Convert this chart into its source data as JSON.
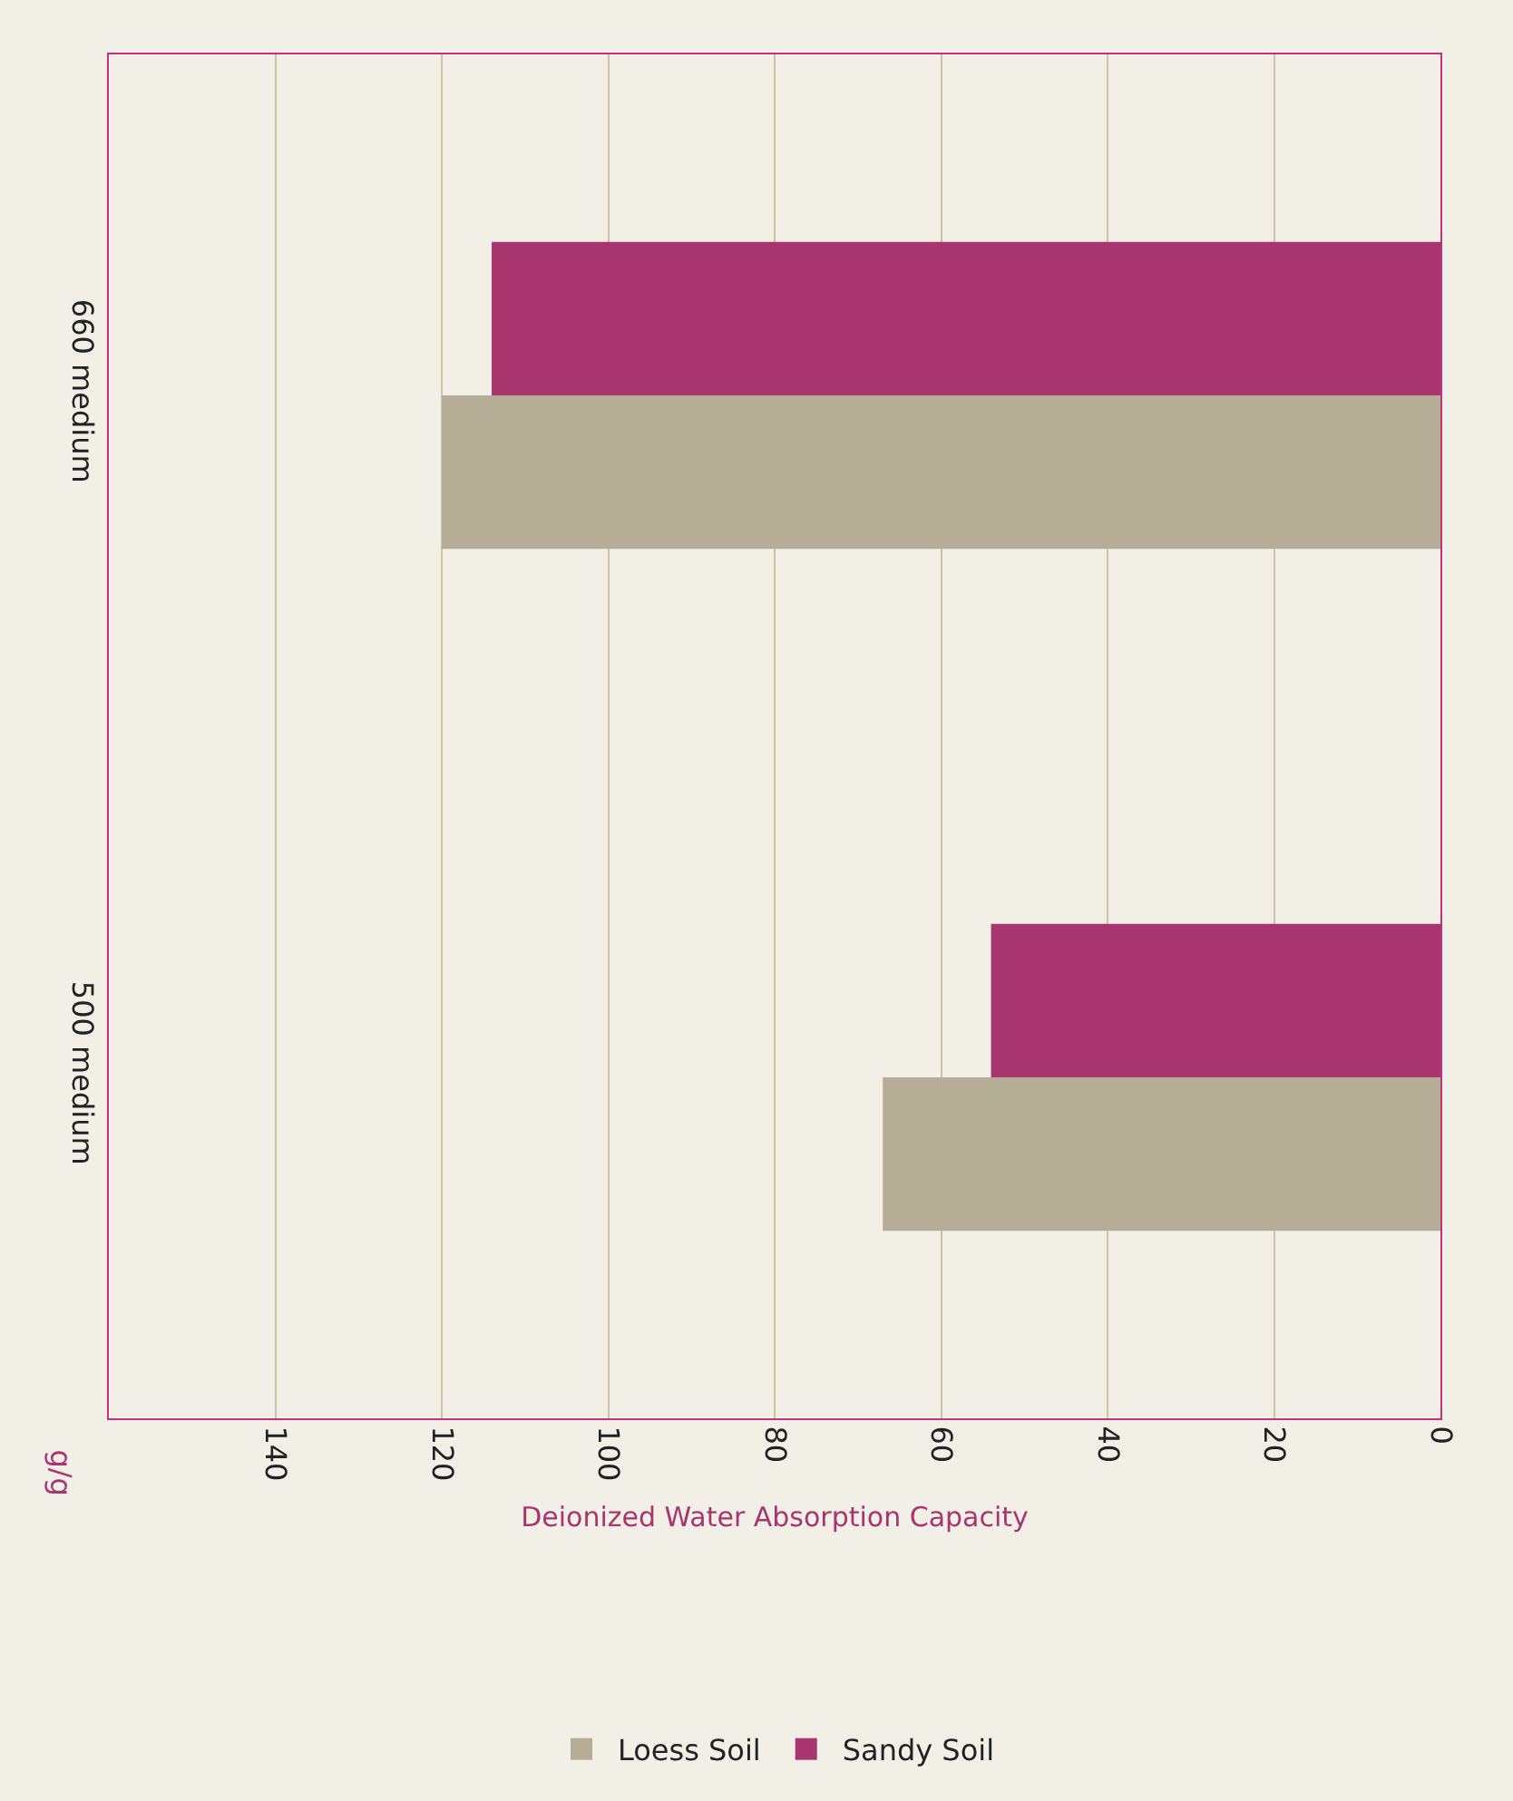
{
  "chart_data": {
    "type": "bar",
    "orientation": "horizontal",
    "categories": [
      "660 medium",
      "500 medium"
    ],
    "series": [
      {
        "name": "Loess Soil",
        "color": "#b5ae96",
        "values": [
          120,
          67
        ]
      },
      {
        "name": "Sandy Soil",
        "color": "#a8356e",
        "values": [
          114,
          54
        ]
      }
    ],
    "xlabel": "Deionized Water Absorption Capacity",
    "annotations": [
      "g/g"
    ],
    "xlim": [
      160,
      0
    ],
    "xticks": [
      0,
      20,
      40,
      60,
      80,
      100,
      120,
      140
    ],
    "grid": true,
    "legend": "bottom"
  }
}
